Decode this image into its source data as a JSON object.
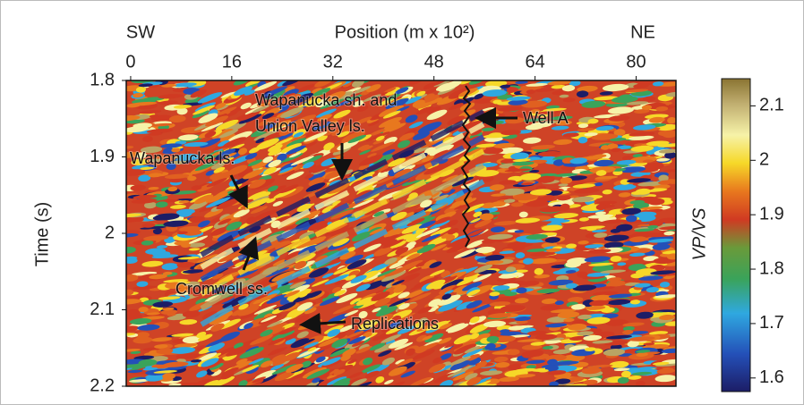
{
  "chart_data": {
    "type": "heatmap",
    "title": "Position (m x 10²)",
    "y_label": "Time (s)",
    "left_label": "SW",
    "right_label": "NE",
    "xlim": [
      -0.7,
      86.3
    ],
    "xticks": [
      0,
      16,
      32,
      48,
      64,
      80
    ],
    "ylim": [
      1.8,
      2.2
    ],
    "yticks": [
      1.8,
      1.9,
      2.0,
      2.1,
      2.2
    ],
    "y_inverted": true,
    "colorbar": {
      "label": "VP/VS",
      "lim": [
        1.575,
        2.15
      ],
      "ticks": [
        1.6,
        1.7,
        1.8,
        1.9,
        2.0,
        2.1
      ]
    },
    "annotations": [
      "Wapanucka sh. and",
      "Union Valley ls.",
      "Wapanucka ls.",
      "Cromwell ss.",
      "Replications",
      "Well A"
    ]
  }
}
